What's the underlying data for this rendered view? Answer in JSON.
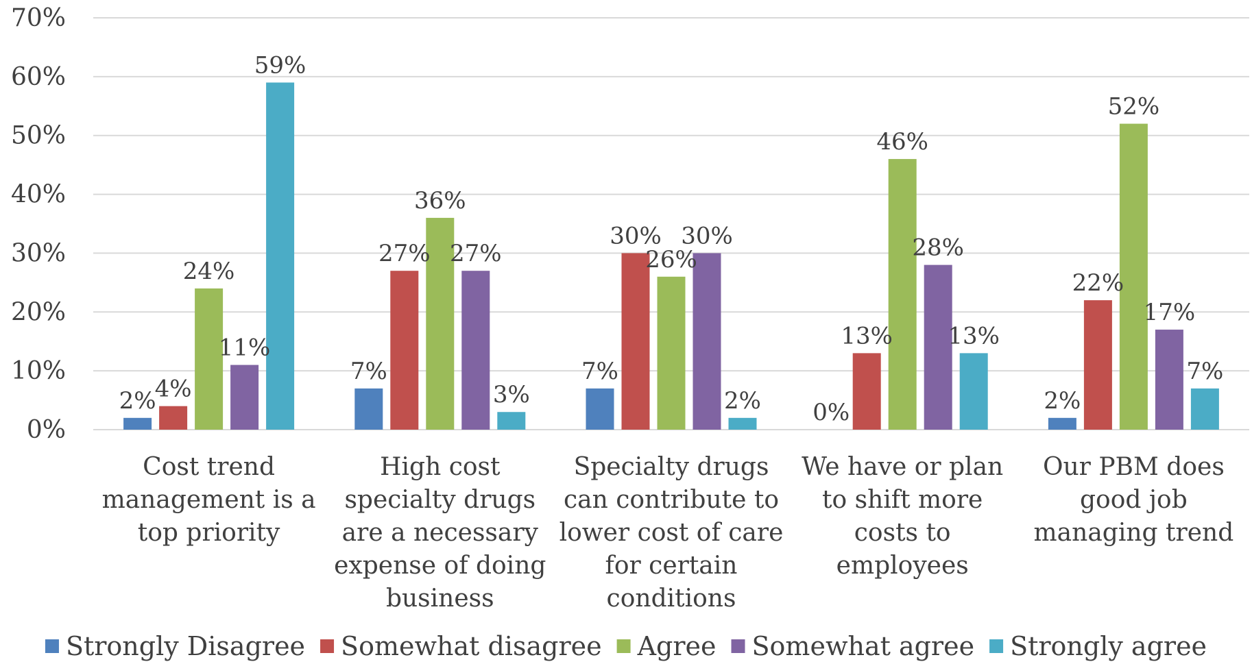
{
  "chart_data": {
    "type": "bar",
    "title": "",
    "xlabel": "",
    "ylabel": "",
    "ylim": [
      0,
      70
    ],
    "yticks": [
      0,
      10,
      20,
      30,
      40,
      50,
      60,
      70
    ],
    "ytick_labels": [
      "0%",
      "10%",
      "20%",
      "30%",
      "40%",
      "50%",
      "60%",
      "70%"
    ],
    "grid": true,
    "legend_position": "bottom",
    "categories": [
      [
        "Cost trend",
        "management is a",
        "top priority"
      ],
      [
        "High cost",
        "specialty drugs",
        "are a necessary",
        "expense of doing",
        "business"
      ],
      [
        "Specialty drugs",
        "can contribute to",
        "lower cost of care",
        "for certain",
        "conditions"
      ],
      [
        "We have or plan",
        "to shift more",
        "costs to",
        "employees"
      ],
      [
        "Our PBM does",
        "good job",
        "managing trend"
      ]
    ],
    "series": [
      {
        "name": "Strongly Disagree",
        "color": "#4f81bd",
        "values": [
          2,
          7,
          7,
          0,
          2
        ],
        "labels": [
          "2%",
          "7%",
          "7%",
          "0%",
          "2%"
        ]
      },
      {
        "name": "Somewhat disagree",
        "color": "#c0504d",
        "values": [
          4,
          27,
          30,
          13,
          22
        ],
        "labels": [
          "4%",
          "27%",
          "30%",
          "13%",
          "22%"
        ]
      },
      {
        "name": "Agree",
        "color": "#9bbb59",
        "values": [
          24,
          36,
          26,
          46,
          52
        ],
        "labels": [
          "24%",
          "36%",
          "26%",
          "46%",
          "52%"
        ]
      },
      {
        "name": "Somewhat agree",
        "color": "#8064a2",
        "values": [
          11,
          27,
          30,
          28,
          17
        ],
        "labels": [
          "11%",
          "27%",
          "30%",
          "28%",
          "17%"
        ]
      },
      {
        "name": "Strongly agree",
        "color": "#4bacc6",
        "values": [
          59,
          3,
          2,
          13,
          7
        ],
        "labels": [
          "59%",
          "3%",
          "2%",
          "13%",
          "7%"
        ]
      }
    ]
  }
}
